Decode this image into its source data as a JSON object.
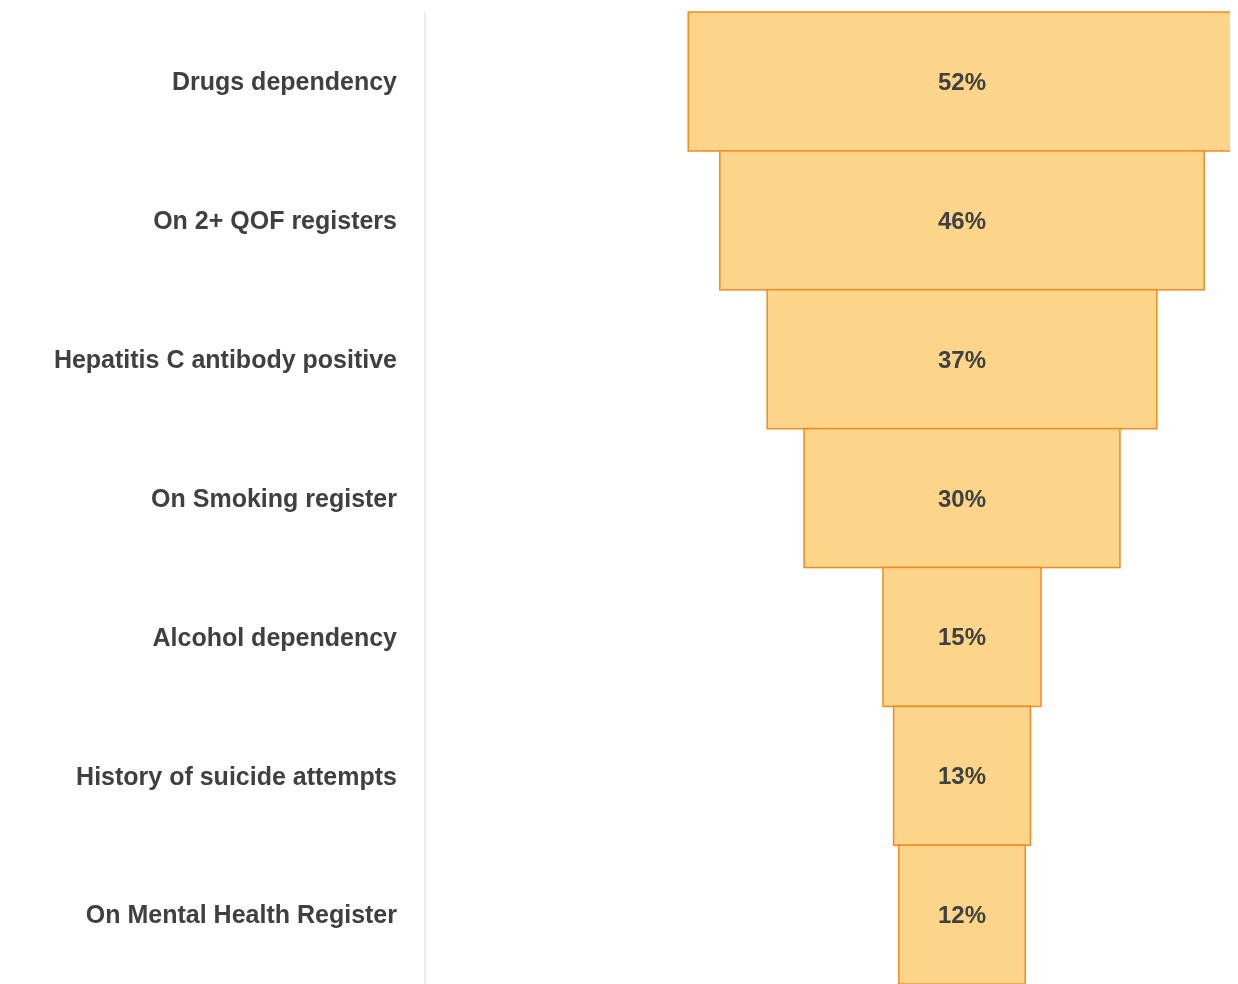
{
  "chart_data": {
    "type": "other",
    "categories": [
      "Drugs dependency",
      "On 2+ QOF registers",
      "Hepatitis C antibody positive",
      "On Smoking register",
      "Alcohol dependency",
      "History of suicide attempts",
      "On Mental Health Register"
    ],
    "values": [
      52,
      46,
      37,
      30,
      15,
      13,
      12
    ],
    "value_labels": [
      "52%",
      "46%",
      "37%",
      "30%",
      "15%",
      "13%",
      "12%"
    ],
    "color": "#fdd58a"
  }
}
